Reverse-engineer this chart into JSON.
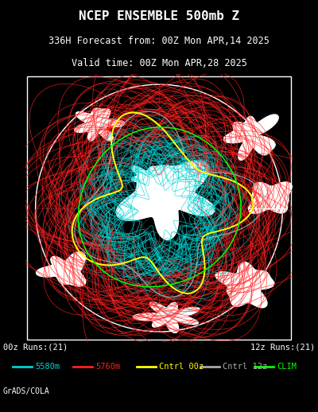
{
  "title_line1": "NCEP ENSEMBLE 500mb Z",
  "title_line2": "336H Forecast from: 00Z Mon APR,14 2025",
  "title_line3": "Valid time: 00Z Mon APR,28 2025",
  "bg_color": "#000000",
  "border_color": "#ffffff",
  "label_00z": "00z Runs:(21)",
  "label_12z": "12z Runs:(21)",
  "legend_items": [
    {
      "label": "5580m",
      "color": "#00d0d0"
    },
    {
      "label": "5760m",
      "color": "#ff2020"
    },
    {
      "label": "Cntrl 00z",
      "color": "#ffff00"
    },
    {
      "label": "Cntrl 12z",
      "color": "#aaaaaa"
    },
    {
      "label": "CLIM",
      "color": "#00ff00"
    }
  ],
  "credit": "GrADS/COLA",
  "n_ensemble_cyan": 21,
  "n_ensemble_red": 21,
  "cyan_color": "#00d0d0",
  "red_color": "#ff2020",
  "yellow_color": "#ffff00",
  "gray_color": "#aaaaaa",
  "green_color": "#00ff00",
  "white_color": "#ffffff",
  "dot_color": "#999999",
  "title_fontsize": 11.5,
  "subtitle_fontsize": 8.5,
  "legend_fontsize": 7.5,
  "credit_fontsize": 7.0
}
